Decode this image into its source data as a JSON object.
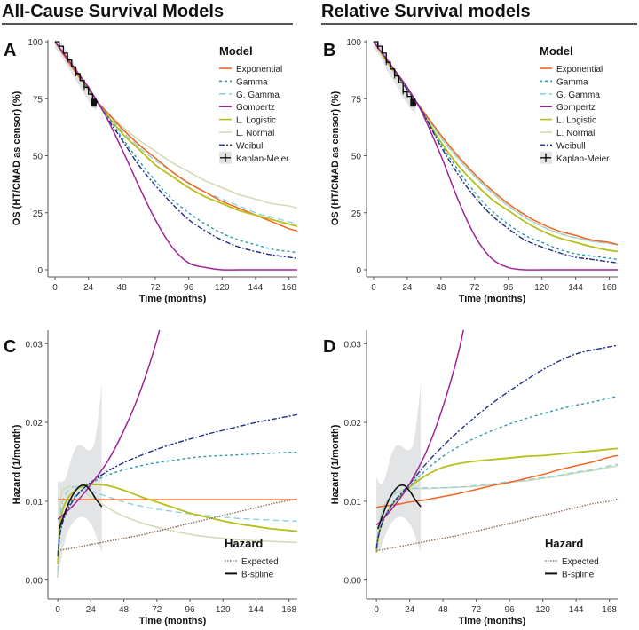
{
  "sections": [
    {
      "title": "All-Cause Survival Models"
    },
    {
      "title": "Relative Survival models"
    }
  ],
  "colors": {
    "Exponential": "#f26522",
    "Gamma": "#2a9aa6",
    "G. Gamma": "#8dd3e0",
    "Gompertz": "#a0239a",
    "L. Logistic": "#b7bf1a",
    "L. Normal": "#d2dbb7",
    "Weibull": "#1f2d86",
    "Kaplan-Meier": "#000000",
    "Expected": "#8a6a5a",
    "B-spline": "#111111",
    "ci_band": "#e3e4e6"
  },
  "chart_data": [
    {
      "panel": "A",
      "type": "line",
      "xlabel": "Time (months)",
      "ylabel": "OS (HT/CMAD as censor) (%)",
      "xlim": [
        0,
        174
      ],
      "ylim": [
        0,
        100
      ],
      "xticks": [
        0,
        24,
        48,
        72,
        96,
        120,
        144,
        168
      ],
      "yticks": [
        0,
        25,
        50,
        75,
        100
      ],
      "ytick_labels": [
        "0",
        "25",
        "50",
        "75",
        "100"
      ],
      "legend_title": "Model",
      "legend_position": "top-right",
      "legend": [
        "Exponential",
        "Gamma",
        "G. Gamma",
        "Gompertz",
        "L. Logistic",
        "L. Normal",
        "Weibull",
        "Kaplan-Meier"
      ],
      "x": [
        0,
        12,
        24,
        30,
        36,
        48,
        60,
        72,
        84,
        96,
        108,
        120,
        132,
        144,
        156,
        168,
        174
      ],
      "series": [
        {
          "name": "Exponential",
          "values": [
            100,
            89,
            79,
            74,
            70,
            62,
            55,
            49,
            43,
            38,
            34,
            30,
            27,
            24,
            21,
            18,
            17
          ]
        },
        {
          "name": "Gamma",
          "values": [
            100,
            90,
            79,
            74,
            69,
            58,
            48,
            39,
            31,
            25,
            20,
            16,
            13,
            11,
            9,
            8,
            7.5
          ]
        },
        {
          "name": "G. Gamma",
          "values": [
            100,
            89,
            79,
            74,
            70,
            61,
            54,
            48,
            43,
            38,
            34,
            31,
            28,
            25,
            23,
            21,
            20
          ]
        },
        {
          "name": "Gompertz",
          "values": [
            100,
            90,
            80,
            74,
            68,
            53,
            37,
            22,
            10,
            3,
            1,
            0,
            0,
            0,
            0,
            0,
            0
          ]
        },
        {
          "name": "L. Logistic",
          "values": [
            100,
            90,
            79,
            74,
            69,
            60,
            53,
            46,
            41,
            36,
            32,
            29,
            26,
            24,
            22,
            20,
            19
          ]
        },
        {
          "name": "L. Normal",
          "values": [
            100,
            89,
            79,
            74,
            70,
            63,
            57,
            52,
            47,
            43,
            39,
            36,
            33,
            31,
            29,
            28,
            27
          ]
        },
        {
          "name": "Weibull",
          "values": [
            100,
            90,
            80,
            74,
            68,
            57,
            46,
            37,
            29,
            22,
            17,
            13,
            10,
            8,
            6.5,
            5.5,
            5
          ]
        }
      ],
      "km": {
        "x": [
          0,
          3,
          6,
          9,
          12,
          15,
          18,
          21,
          24,
          27,
          30
        ],
        "values": [
          100,
          98,
          95,
          92,
          89,
          86,
          83,
          80,
          77,
          74,
          73
        ]
      }
    },
    {
      "panel": "B",
      "type": "line",
      "xlabel": "Time (months)",
      "ylabel": "OS (HT/CMAD as censor) (%)",
      "xlim": [
        0,
        174
      ],
      "ylim": [
        0,
        100
      ],
      "xticks": [
        0,
        24,
        48,
        72,
        96,
        120,
        144,
        168
      ],
      "yticks": [
        0,
        25,
        50,
        75,
        100
      ],
      "ytick_labels": [
        "0",
        "25",
        "50",
        "75",
        "100"
      ],
      "legend_title": "Model",
      "legend_position": "top-right",
      "legend": [
        "Exponential",
        "Gamma",
        "G. Gamma",
        "Gompertz",
        "L. Logistic",
        "L. Normal",
        "Weibull",
        "Kaplan-Meier"
      ],
      "x": [
        0,
        12,
        24,
        30,
        36,
        48,
        60,
        72,
        84,
        96,
        108,
        120,
        132,
        144,
        156,
        168,
        174
      ],
      "series": [
        {
          "name": "Exponential",
          "values": [
            100,
            89,
            79,
            74,
            69,
            59,
            50,
            42,
            35,
            29,
            24,
            20,
            17,
            15,
            13,
            12,
            11
          ]
        },
        {
          "name": "Gamma",
          "values": [
            100,
            90,
            79,
            74,
            68,
            55,
            44,
            34,
            26,
            20,
            15,
            12,
            9,
            7,
            6,
            5,
            4.5
          ]
        },
        {
          "name": "G. Gamma",
          "values": [
            100,
            89,
            79,
            74,
            69,
            58,
            49,
            41,
            34,
            28,
            23,
            19,
            16,
            14,
            12.5,
            11.5,
            11
          ]
        },
        {
          "name": "Gompertz",
          "values": [
            100,
            90,
            80,
            74,
            67,
            50,
            31,
            15,
            5,
            1,
            0,
            0,
            0,
            0,
            0,
            0,
            0
          ]
        },
        {
          "name": "L. Logistic",
          "values": [
            100,
            89,
            79,
            74,
            68,
            56,
            46,
            38,
            31,
            26,
            21,
            17,
            14,
            12,
            10,
            8.5,
            8
          ]
        },
        {
          "name": "L. Normal",
          "values": [
            100,
            89,
            79,
            74,
            69,
            58,
            49,
            41,
            34,
            28,
            23,
            19,
            16,
            14,
            12.5,
            11.5,
            11
          ]
        },
        {
          "name": "Weibull",
          "values": [
            100,
            90,
            79,
            74,
            68,
            54,
            42,
            32,
            24,
            18,
            13,
            10,
            7.5,
            5.5,
            4.5,
            3.5,
            3
          ]
        }
      ],
      "km": {
        "x": [
          0,
          3,
          6,
          9,
          12,
          15,
          18,
          21,
          24,
          27,
          30
        ],
        "values": [
          100,
          98,
          95,
          91,
          88,
          85,
          82,
          78,
          76,
          73,
          72
        ]
      }
    },
    {
      "panel": "C",
      "type": "line",
      "xlabel": "Time (months)",
      "ylabel": "Hazard (1/month)",
      "xlim": [
        -2,
        174
      ],
      "ylim": [
        -0.0015,
        0.0315
      ],
      "xticks": [
        0,
        24,
        48,
        72,
        96,
        120,
        144,
        168
      ],
      "yticks": [
        0,
        0.01,
        0.02,
        0.03
      ],
      "ytick_labels": [
        "0.00",
        "0.01",
        "0.02",
        "0.03"
      ],
      "legend_title": "Hazard",
      "legend_position": "bottom-right",
      "legend": [
        "Expected",
        "B-spline"
      ],
      "x": [
        0,
        2,
        6,
        12,
        18,
        24,
        36,
        48,
        60,
        72,
        84,
        96,
        108,
        120,
        132,
        144,
        156,
        168,
        174
      ],
      "series": [
        {
          "name": "Exponential",
          "values": [
            0.0102,
            0.0102,
            0.0102,
            0.0102,
            0.0102,
            0.0102,
            0.0102,
            0.0102,
            0.0102,
            0.0102,
            0.0102,
            0.0102,
            0.0102,
            0.0102,
            0.0102,
            0.0102,
            0.0102,
            0.0102,
            0.0102
          ]
        },
        {
          "name": "Gamma",
          "values": [
            0.0035,
            0.0065,
            0.0088,
            0.0105,
            0.0115,
            0.0123,
            0.0133,
            0.014,
            0.0145,
            0.0149,
            0.0152,
            0.0155,
            0.0157,
            0.0158,
            0.0159,
            0.016,
            0.0161,
            0.0162,
            0.0162
          ]
        },
        {
          "name": "G. Gamma",
          "values": [
            0.001,
            0.0085,
            0.011,
            0.0118,
            0.0117,
            0.0113,
            0.0106,
            0.0099,
            0.0094,
            0.009,
            0.0087,
            0.0084,
            0.0082,
            0.008,
            0.0078,
            0.0077,
            0.0076,
            0.0075,
            0.0075
          ]
        },
        {
          "name": "Gompertz",
          "values": [
            0.0077,
            0.008,
            0.0086,
            0.0096,
            0.0108,
            0.0121,
            0.015,
            0.019,
            0.024,
            0.0305,
            0.039,
            null,
            null,
            null,
            null,
            null,
            null,
            null,
            null
          ]
        },
        {
          "name": "L. Logistic",
          "values": [
            0.002,
            0.0075,
            0.01,
            0.0113,
            0.0119,
            0.0121,
            0.012,
            0.0114,
            0.0106,
            0.0099,
            0.0092,
            0.0085,
            0.008,
            0.0075,
            0.0071,
            0.0068,
            0.0065,
            0.0063,
            0.0062
          ]
        },
        {
          "name": "L. Normal",
          "values": [
            0.0003,
            0.01,
            0.0117,
            0.0118,
            0.0113,
            0.0106,
            0.0092,
            0.0081,
            0.0073,
            0.0067,
            0.0062,
            0.0058,
            0.0055,
            0.0053,
            0.0051,
            0.005,
            0.0049,
            0.0048,
            0.0048
          ]
        },
        {
          "name": "Weibull",
          "values": [
            0.003,
            0.0062,
            0.0085,
            0.0103,
            0.0115,
            0.0124,
            0.0138,
            0.0149,
            0.0158,
            0.0166,
            0.0173,
            0.0179,
            0.0185,
            0.019,
            0.0195,
            0.02,
            0.0204,
            0.0208,
            0.021
          ]
        },
        {
          "name": "Expected",
          "values": [
            0.0037,
            0.0038,
            0.0039,
            0.0041,
            0.0043,
            0.0045,
            0.0049,
            0.0053,
            0.0057,
            0.0062,
            0.0067,
            0.0072,
            0.0077,
            0.0082,
            0.0087,
            0.0092,
            0.0097,
            0.0101,
            0.0103
          ]
        }
      ],
      "bspline": {
        "x": [
          1,
          4,
          8,
          12,
          16,
          20,
          24,
          28,
          32
        ],
        "values": [
          0.0065,
          0.008,
          0.0098,
          0.0111,
          0.0119,
          0.012,
          0.0113,
          0.0102,
          0.0093
        ]
      },
      "ci_band": {
        "x": [
          0,
          3,
          6,
          10,
          14,
          18,
          22,
          26,
          29,
          32
        ],
        "upper": [
          0.0125,
          0.0125,
          0.013,
          0.0155,
          0.017,
          0.017,
          0.0165,
          0.017,
          0.02,
          0.025
        ],
        "lower": [
          0.0005,
          0.003,
          0.0055,
          0.007,
          0.0078,
          0.008,
          0.0076,
          0.0065,
          0.005,
          0.0035
        ]
      }
    },
    {
      "panel": "D",
      "type": "line",
      "xlabel": "Time (months)",
      "ylabel": "Hazard (1/month)",
      "xlim": [
        -2,
        174
      ],
      "ylim": [
        -0.0015,
        0.0315
      ],
      "xticks": [
        0,
        24,
        48,
        72,
        96,
        120,
        144,
        168
      ],
      "yticks": [
        0,
        0.01,
        0.02,
        0.03
      ],
      "ytick_labels": [
        "0.00",
        "0.01",
        "0.02",
        "0.03"
      ],
      "legend_title": "Hazard",
      "legend_position": "bottom-right",
      "legend": [
        "Expected",
        "B-spline"
      ],
      "x": [
        0,
        2,
        6,
        12,
        18,
        24,
        36,
        48,
        60,
        72,
        84,
        96,
        108,
        120,
        132,
        144,
        156,
        168,
        174
      ],
      "series": [
        {
          "name": "Exponential",
          "values": [
            0.0092,
            0.0093,
            0.0094,
            0.0095,
            0.0097,
            0.0099,
            0.0102,
            0.0106,
            0.011,
            0.0115,
            0.012,
            0.0124,
            0.0129,
            0.0134,
            0.014,
            0.0145,
            0.015,
            0.0156,
            0.0158
          ]
        },
        {
          "name": "Gamma",
          "values": [
            0.004,
            0.0062,
            0.008,
            0.0097,
            0.0108,
            0.0119,
            0.014,
            0.0157,
            0.017,
            0.0181,
            0.019,
            0.0198,
            0.0205,
            0.0211,
            0.0217,
            0.0222,
            0.0226,
            0.0231,
            0.0233
          ]
        },
        {
          "name": "G. Gamma",
          "values": [
            0.004,
            0.007,
            0.0095,
            0.0108,
            0.0114,
            0.0116,
            0.0117,
            0.0117,
            0.0118,
            0.012,
            0.0122,
            0.0125,
            0.0127,
            0.013,
            0.0133,
            0.0137,
            0.014,
            0.0145,
            0.0147
          ]
        },
        {
          "name": "Gompertz",
          "values": [
            0.007,
            0.0073,
            0.008,
            0.0092,
            0.0106,
            0.0122,
            0.0163,
            0.022,
            0.0295,
            0.04,
            null,
            null,
            null,
            null,
            null,
            null,
            null,
            null,
            null
          ]
        },
        {
          "name": "L. Logistic",
          "values": [
            0.0035,
            0.006,
            0.008,
            0.0097,
            0.0108,
            0.0118,
            0.0133,
            0.0143,
            0.0148,
            0.0151,
            0.0153,
            0.0155,
            0.0157,
            0.0158,
            0.016,
            0.0162,
            0.0164,
            0.0166,
            0.0167
          ]
        },
        {
          "name": "L. Normal",
          "values": [
            0.004,
            0.0072,
            0.0096,
            0.0108,
            0.0114,
            0.0116,
            0.0116,
            0.0117,
            0.0118,
            0.0119,
            0.0121,
            0.0124,
            0.0126,
            0.0129,
            0.0132,
            0.0136,
            0.0139,
            0.0143,
            0.0145
          ]
        },
        {
          "name": "Weibull",
          "values": [
            0.004,
            0.006,
            0.008,
            0.0098,
            0.011,
            0.0122,
            0.0148,
            0.017,
            0.019,
            0.0208,
            0.0225,
            0.024,
            0.0254,
            0.0267,
            0.0278,
            0.0287,
            0.0292,
            0.0296,
            0.0298
          ]
        },
        {
          "name": "Expected",
          "values": [
            0.0037,
            0.0038,
            0.0039,
            0.0041,
            0.0043,
            0.0045,
            0.0049,
            0.0053,
            0.0057,
            0.0062,
            0.0067,
            0.0072,
            0.0077,
            0.0082,
            0.0087,
            0.0092,
            0.0097,
            0.01,
            0.0103
          ]
        }
      ],
      "bspline": {
        "x": [
          1,
          4,
          8,
          12,
          16,
          20,
          24,
          28,
          32
        ],
        "values": [
          0.0065,
          0.008,
          0.0098,
          0.0111,
          0.0119,
          0.012,
          0.0113,
          0.0102,
          0.0093
        ]
      },
      "ci_band": {
        "x": [
          0,
          3,
          6,
          10,
          14,
          18,
          22,
          26,
          29,
          32
        ],
        "upper": [
          0.013,
          0.0122,
          0.0128,
          0.0155,
          0.017,
          0.017,
          0.0165,
          0.017,
          0.02,
          0.025
        ],
        "lower": [
          0.0035,
          0.004,
          0.0055,
          0.007,
          0.0078,
          0.008,
          0.0076,
          0.0065,
          0.005,
          0.0035
        ]
      }
    }
  ]
}
